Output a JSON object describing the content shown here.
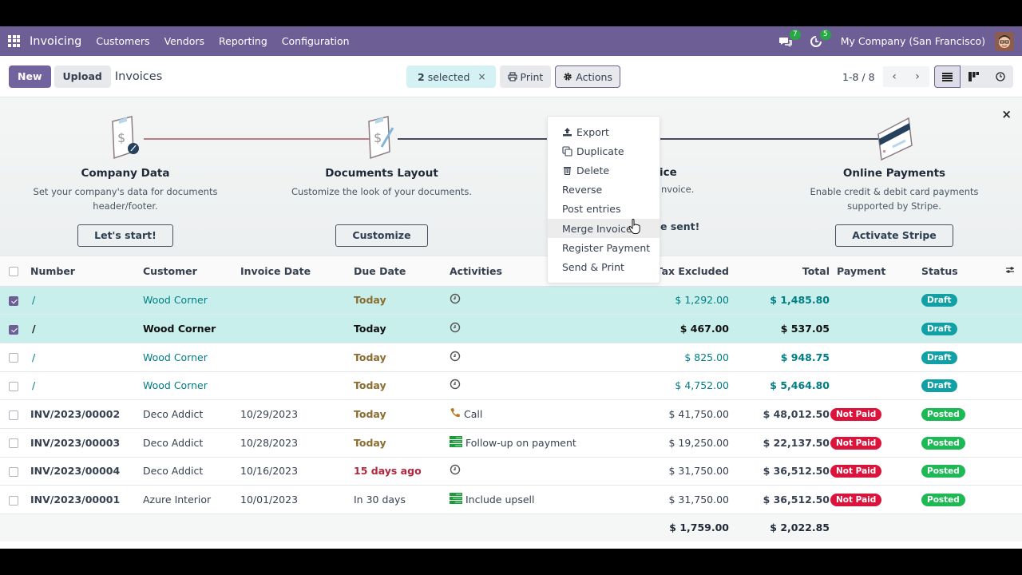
{
  "navbar": {
    "app_name": "Invoicing",
    "menu": [
      "Customers",
      "Vendors",
      "Reporting",
      "Configuration"
    ],
    "messages_count": "7",
    "activities_count": "5",
    "company": "My Company (San Francisco)",
    "icons": [
      "apps-grid-icon",
      "chat-icon",
      "clock-icon",
      "avatar"
    ],
    "color": "#6d5e95"
  },
  "control_panel": {
    "new_label": "New",
    "upload_label": "Upload",
    "title": "Invoices",
    "selected_count": "2",
    "selected_label": "selected",
    "clear_selection": "×",
    "print_label": "Print",
    "actions_label": "Actions",
    "pager": "1-8 / 8",
    "views": [
      "list-view",
      "kanban-view",
      "activity-view"
    ]
  },
  "actions_menu": {
    "items": [
      {
        "label": "Export",
        "icon": "upload-icon"
      },
      {
        "label": "Duplicate",
        "icon": "copy-icon"
      },
      {
        "label": "Delete",
        "icon": "trash-icon"
      },
      {
        "label": "Reverse"
      },
      {
        "label": "Post entries"
      },
      {
        "label": "Merge Invoices",
        "hovered": true
      },
      {
        "label": "Register Payment"
      },
      {
        "label": "Send & Print"
      }
    ]
  },
  "onboarding": {
    "steps": [
      {
        "title": "Company Data",
        "desc_line1": "Set your company's data for documents",
        "desc_line2": "header/footer.",
        "button": "Let's start!"
      },
      {
        "title": "Documents Layout",
        "desc_line1": "Customize the look of your documents.",
        "button": "Customize"
      },
      {
        "title_partial": "ice",
        "desc_partial": "nvoice.",
        "button_partial": "e sent!"
      },
      {
        "title": "Online Payments",
        "desc_line1": "Enable credit & debit card payments",
        "desc_line2": "supported by Stripe.",
        "button": "Activate Stripe"
      }
    ],
    "close": "×"
  },
  "table": {
    "columns": [
      "Number",
      "Customer",
      "Invoice Date",
      "Due Date",
      "Activities",
      "Tax Excluded",
      "Total",
      "Payment",
      "Status"
    ],
    "rows": [
      {
        "selected": true,
        "number": "/",
        "customer": "Wood Corner",
        "invoice_date": "",
        "due_date": "Today",
        "due_class": "today",
        "activity": "",
        "activity_icon": "clock-icon",
        "tax_excluded": "$ 1,292.00",
        "total": "$ 1,485.80",
        "payment": "",
        "status": "Draft"
      },
      {
        "selected": true,
        "bold": true,
        "number": "/",
        "customer": "Wood Corner",
        "invoice_date": "",
        "due_date": "Today",
        "due_class": "today",
        "activity": "",
        "activity_icon": "clock-icon",
        "tax_excluded": "$ 467.00",
        "total": "$ 537.05",
        "payment": "",
        "status": "Draft"
      },
      {
        "selected": false,
        "number": "/",
        "customer": "Wood Corner",
        "invoice_date": "",
        "due_date": "Today",
        "due_class": "today",
        "activity": "",
        "activity_icon": "clock-icon",
        "tax_excluded": "$ 825.00",
        "total": "$ 948.75",
        "payment": "",
        "status": "Draft"
      },
      {
        "selected": false,
        "number": "/",
        "customer": "Wood Corner",
        "invoice_date": "",
        "due_date": "Today",
        "due_class": "today",
        "activity": "",
        "activity_icon": "clock-icon",
        "tax_excluded": "$ 4,752.00",
        "total": "$ 5,464.80",
        "payment": "",
        "status": "Draft"
      },
      {
        "selected": false,
        "number": "INV/2023/00002",
        "customer": "Deco Addict",
        "invoice_date": "10/29/2023",
        "due_date": "Today",
        "due_class": "today",
        "activity": "Call",
        "activity_icon": "phone-icon",
        "tax_excluded": "$ 41,750.00",
        "total": "$ 48,012.50",
        "payment": "Not Paid",
        "status": "Posted"
      },
      {
        "selected": false,
        "number": "INV/2023/00003",
        "customer": "Deco Addict",
        "invoice_date": "10/28/2023",
        "due_date": "Today",
        "due_class": "today",
        "activity": "Follow-up on payment",
        "activity_icon": "todo-icon",
        "tax_excluded": "$ 19,250.00",
        "total": "$ 22,137.50",
        "payment": "Not Paid",
        "status": "Posted"
      },
      {
        "selected": false,
        "number": "INV/2023/00004",
        "customer": "Deco Addict",
        "invoice_date": "10/16/2023",
        "due_date": "15 days ago",
        "due_class": "late",
        "activity": "",
        "activity_icon": "clock-icon",
        "tax_excluded": "$ 31,750.00",
        "total": "$ 36,512.50",
        "payment": "Not Paid",
        "status": "Posted"
      },
      {
        "selected": false,
        "number": "INV/2023/00001",
        "customer": "Azure Interior",
        "invoice_date": "10/01/2023",
        "due_date": "In 30 days",
        "due_class": "normal",
        "activity": "Include upsell",
        "activity_icon": "todo-icon",
        "tax_excluded": "$ 31,750.00",
        "total": "$ 36,512.50",
        "payment": "Not Paid",
        "status": "Posted"
      }
    ],
    "footer": {
      "tax_excluded": "$ 1,759.00",
      "total": "$ 2,022.85"
    }
  }
}
